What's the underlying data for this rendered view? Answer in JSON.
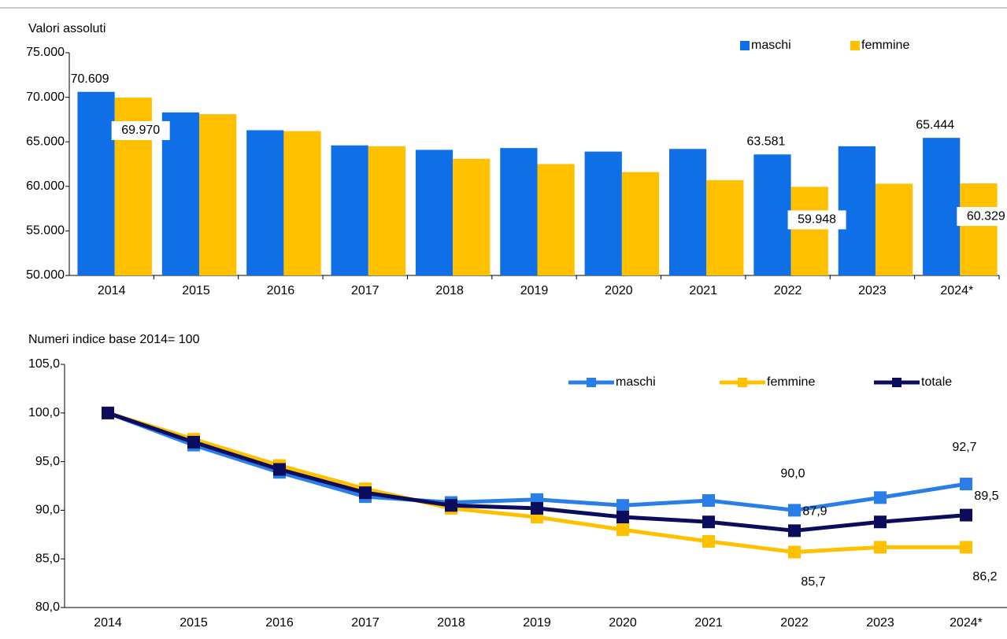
{
  "chart_data": [
    {
      "type": "bar",
      "title": "Valori assoluti",
      "categories": [
        "2014",
        "2015",
        "2016",
        "2017",
        "2018",
        "2019",
        "2020",
        "2021",
        "2022",
        "2023",
        "2024*"
      ],
      "series": [
        {
          "name": "maschi",
          "color": "#0f6fe6",
          "values": [
            70609,
            68300,
            66300,
            64600,
            64100,
            64300,
            63900,
            64200,
            63581,
            64500,
            65444
          ],
          "value_labels": [
            "70.609",
            null,
            null,
            null,
            null,
            null,
            null,
            null,
            "63.581",
            null,
            "65.444"
          ]
        },
        {
          "name": "femmine",
          "color": "#ffc000",
          "values": [
            69970,
            68100,
            66200,
            64500,
            63100,
            62500,
            61600,
            60700,
            59948,
            60300,
            60329
          ],
          "value_labels": [
            "69.970",
            null,
            null,
            null,
            null,
            null,
            null,
            null,
            "59.948",
            null,
            "60.329"
          ]
        }
      ],
      "ylim": [
        50000,
        75000
      ],
      "yticks": [
        {
          "value": 50000,
          "label": "50.000"
        },
        {
          "value": 55000,
          "label": "55.000"
        },
        {
          "value": 60000,
          "label": "60.000"
        },
        {
          "value": 65000,
          "label": "65.000"
        },
        {
          "value": 70000,
          "label": "70.000"
        },
        {
          "value": 75000,
          "label": "75.000"
        }
      ],
      "legend": "top-right"
    },
    {
      "type": "line",
      "title": "Numeri indice base 2014= 100",
      "categories": [
        "2014",
        "2015",
        "2016",
        "2017",
        "2018",
        "2019",
        "2020",
        "2021",
        "2022",
        "2023",
        "2024*"
      ],
      "series": [
        {
          "name": "maschi",
          "color": "#2a7ee8",
          "values": [
            100,
            96.7,
            93.9,
            91.4,
            90.8,
            91.1,
            90.5,
            91.0,
            90.0,
            91.3,
            92.7
          ],
          "value_labels": [
            null,
            null,
            null,
            null,
            null,
            null,
            null,
            null,
            "90,0",
            null,
            "92,7"
          ]
        },
        {
          "name": "femmine",
          "color": "#ffc000",
          "values": [
            100,
            97.3,
            94.6,
            92.2,
            90.2,
            89.3,
            88.0,
            86.8,
            85.7,
            86.2,
            86.2
          ],
          "value_labels": [
            null,
            null,
            null,
            null,
            null,
            null,
            null,
            null,
            "85,7",
            null,
            "86,2"
          ]
        },
        {
          "name": "totale",
          "color": "#0c0c5c",
          "values": [
            100,
            97.0,
            94.2,
            91.8,
            90.5,
            90.2,
            89.3,
            88.8,
            87.9,
            88.8,
            89.5
          ],
          "value_labels": [
            null,
            null,
            null,
            null,
            null,
            null,
            null,
            null,
            "87,9",
            null,
            "89,5"
          ]
        }
      ],
      "ylim": [
        80,
        105
      ],
      "yticks": [
        {
          "value": 80,
          "label": "80,0"
        },
        {
          "value": 85,
          "label": "85,0"
        },
        {
          "value": 90,
          "label": "90,0"
        },
        {
          "value": 95,
          "label": "95,0"
        },
        {
          "value": 100,
          "label": "100,0"
        },
        {
          "value": 105,
          "label": "105,0"
        }
      ],
      "legend": "top-right"
    }
  ]
}
